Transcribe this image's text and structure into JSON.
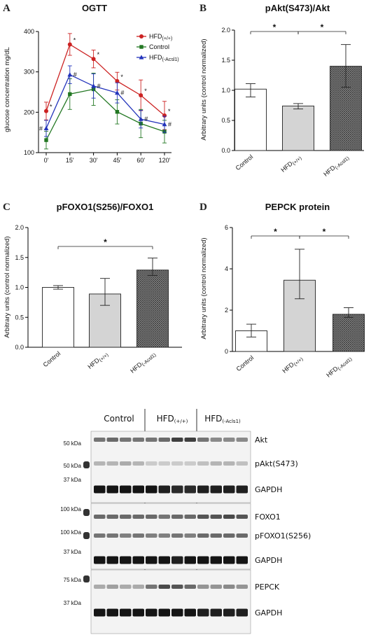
{
  "panels": {
    "A": {
      "letter": "A",
      "chart_data": {
        "type": "line",
        "title": "OGTT",
        "ylabel": "glucose concentration mg/dL",
        "xlabel": "",
        "categories": [
          "0'",
          "15'",
          "30'",
          "45'",
          "60'",
          "120'"
        ],
        "ylim": [
          100,
          400
        ],
        "yticks": [
          100,
          200,
          300,
          400
        ],
        "legend_position": "top-right",
        "series": [
          {
            "name": "HFD",
            "name_sub": "(+/+)",
            "color": "#cc2222",
            "marker": "circle",
            "values": [
              203,
              368,
              332,
              277,
              242,
              192
            ],
            "errors": [
              22,
              27,
              22,
              22,
              38,
              35
            ],
            "marks": [
              "*",
              "*",
              "*",
              "*",
              "*",
              "*"
            ]
          },
          {
            "name": "Control",
            "name_sub": "",
            "color": "#227722",
            "marker": "square",
            "values": [
              131,
              245,
              257,
              201,
              172,
              152
            ],
            "errors": [
              22,
              38,
              40,
              30,
              35,
              28
            ],
            "marks": [
              "",
              "",
              "",
              "",
              "",
              ""
            ]
          },
          {
            "name": "HFD",
            "name_sub": "(-Acsl1)",
            "color": "#2233bb",
            "marker": "triangle",
            "values": [
              160,
              293,
              265,
              248,
              183,
              170
            ],
            "errors": [
              20,
              22,
              30,
              25,
              22,
              20
            ],
            "marks": [
              "#",
              "#",
              "#",
              "#",
              "#",
              "#"
            ]
          }
        ]
      }
    },
    "B": {
      "letter": "B",
      "chart_data": {
        "type": "bar",
        "title": "pAkt(S473)/Akt",
        "ylabel": "Arbitrary units (control normalized)",
        "xlabel": "",
        "categories": [
          {
            "main": "Control",
            "sub": ""
          },
          {
            "main": "HFD",
            "sub": "(+/+)"
          },
          {
            "main": "HFD",
            "sub": "(-Acsl1)"
          }
        ],
        "values": [
          1.02,
          0.74,
          1.4
        ],
        "err_low": [
          0.13,
          0.05,
          0.35
        ],
        "err_high": [
          0.09,
          0.04,
          0.36
        ],
        "ylim": [
          0,
          2.0
        ],
        "yticks": [
          0.0,
          0.5,
          1.0,
          1.5,
          2.0
        ],
        "ytick_labels": [
          "0.0",
          "0.5",
          "1.0",
          "1.5",
          "2.0"
        ],
        "fills": [
          "white",
          "gray",
          "hatch"
        ],
        "significance": [
          {
            "from": 0,
            "to": 1,
            "label": "*"
          },
          {
            "from": 1,
            "to": 2,
            "label": "*"
          }
        ]
      }
    },
    "C": {
      "letter": "C",
      "chart_data": {
        "type": "bar",
        "title": "pFOXO1(S256)/FOXO1",
        "ylabel": "Arbitrary units (control normalized)",
        "xlabel": "",
        "categories": [
          {
            "main": "Control",
            "sub": ""
          },
          {
            "main": "HFD",
            "sub": "(+/+)"
          },
          {
            "main": "HFD",
            "sub": "(-Acsl1)"
          }
        ],
        "values": [
          1.0,
          0.89,
          1.29
        ],
        "err_low": [
          0.03,
          0.19,
          0.09
        ],
        "err_high": [
          0.03,
          0.26,
          0.2
        ],
        "ylim": [
          0,
          2.0
        ],
        "yticks": [
          0.0,
          0.5,
          1.0,
          1.5,
          2.0
        ],
        "ytick_labels": [
          "0.0",
          "0.5",
          "1.0",
          "1.5",
          "2.0"
        ],
        "fills": [
          "white",
          "gray",
          "hatch"
        ],
        "significance": [
          {
            "from": 0,
            "to": 2,
            "label": "*"
          }
        ]
      }
    },
    "D": {
      "letter": "D",
      "chart_data": {
        "type": "bar",
        "title": "PEPCK protein",
        "ylabel": "Arbitrary units (control normalized)",
        "xlabel": "",
        "categories": [
          {
            "main": "Control",
            "sub": ""
          },
          {
            "main": "HFD",
            "sub": "(+/+)"
          },
          {
            "main": "HFD",
            "sub": "(-Acsl1)"
          }
        ],
        "values": [
          1.0,
          3.45,
          1.8
        ],
        "err_low": [
          0.3,
          0.9,
          0.15
        ],
        "err_high": [
          0.32,
          1.5,
          0.32
        ],
        "ylim": [
          0,
          6
        ],
        "yticks": [
          0,
          2,
          4,
          6
        ],
        "ytick_labels": [
          "0",
          "2",
          "4",
          "6"
        ],
        "fills": [
          "white",
          "gray",
          "hatch"
        ],
        "significance": [
          {
            "from": 0,
            "to": 1,
            "label": "*"
          },
          {
            "from": 1,
            "to": 2,
            "label": "*"
          }
        ]
      }
    }
  },
  "blot": {
    "groups": [
      {
        "main": "Control",
        "sub": ""
      },
      {
        "main": "HFD",
        "sub": "(+/+)"
      },
      {
        "main": "HFD",
        "sub": "(-Acls1)"
      }
    ],
    "rows": [
      {
        "label": "Akt",
        "marker": "50 kDa"
      },
      {
        "label": "pAkt(S473)",
        "marker": "50 kDa"
      },
      {
        "label": "GAPDH",
        "marker": "37 kDa"
      },
      {
        "label": "FOXO1",
        "marker": "100 kDa"
      },
      {
        "label": "pFOXO1(S256)",
        "marker": "100 kDa"
      },
      {
        "label": "GAPDH",
        "marker": "37 kDa"
      },
      {
        "label": "PEPCK",
        "marker": "75 kDa"
      },
      {
        "label": "GAPDH",
        "marker": "37 kDa"
      }
    ],
    "intensities": [
      [
        0.55,
        0.6,
        0.55,
        0.55,
        0.55,
        0.6,
        0.8,
        0.8,
        0.55,
        0.45,
        0.45,
        0.45
      ],
      [
        0.25,
        0.25,
        0.3,
        0.25,
        0.15,
        0.15,
        0.15,
        0.15,
        0.2,
        0.25,
        0.25,
        0.2
      ],
      [
        1,
        1,
        1,
        1,
        1,
        0.95,
        0.9,
        0.9,
        0.95,
        0.95,
        0.95,
        0.95
      ],
      [
        0.6,
        0.6,
        0.6,
        0.6,
        0.6,
        0.55,
        0.6,
        0.6,
        0.7,
        0.7,
        0.75,
        0.7
      ],
      [
        0.55,
        0.55,
        0.5,
        0.55,
        0.5,
        0.5,
        0.55,
        0.5,
        0.6,
        0.6,
        0.6,
        0.6
      ],
      [
        1,
        1,
        1,
        1,
        1,
        1,
        0.95,
        1,
        1,
        1,
        1,
        1
      ],
      [
        0.3,
        0.35,
        0.3,
        0.3,
        0.55,
        0.75,
        0.7,
        0.6,
        0.4,
        0.4,
        0.45,
        0.4
      ],
      [
        1,
        1,
        1,
        1,
        1,
        1,
        1,
        1,
        0.95,
        0.95,
        0.95,
        0.95
      ]
    ]
  }
}
